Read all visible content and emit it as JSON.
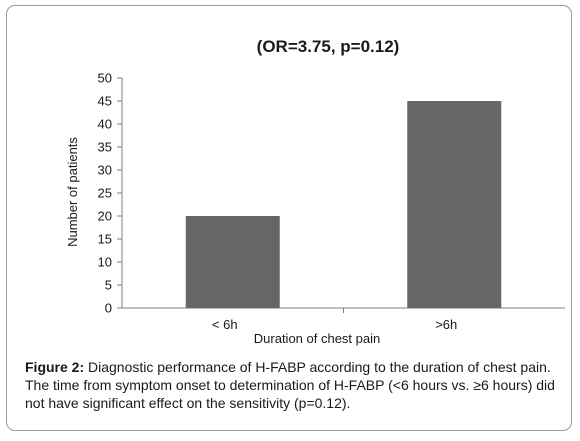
{
  "chart_data": {
    "type": "bar",
    "title": "(OR=3.75, p=0.12)",
    "xlabel": "Duration of chest pain",
    "ylabel": "Number of patients",
    "categories": [
      "< 6h",
      ">6h"
    ],
    "values": [
      20,
      45
    ],
    "ylim": [
      0,
      50
    ],
    "yticks": [
      0,
      5,
      10,
      15,
      20,
      25,
      30,
      35,
      40,
      45,
      50
    ],
    "grid": false,
    "legend": "none",
    "bar_color": "#666666"
  },
  "caption": {
    "label": "Figure 2:",
    "text": " Diagnostic performance of H-FABP according to the duration of chest pain. The time from symptom onset to determination of H-FABP (<6 hours vs. ≥6 hours) did not have significant effect on the sensitivity (p=0.12)."
  }
}
